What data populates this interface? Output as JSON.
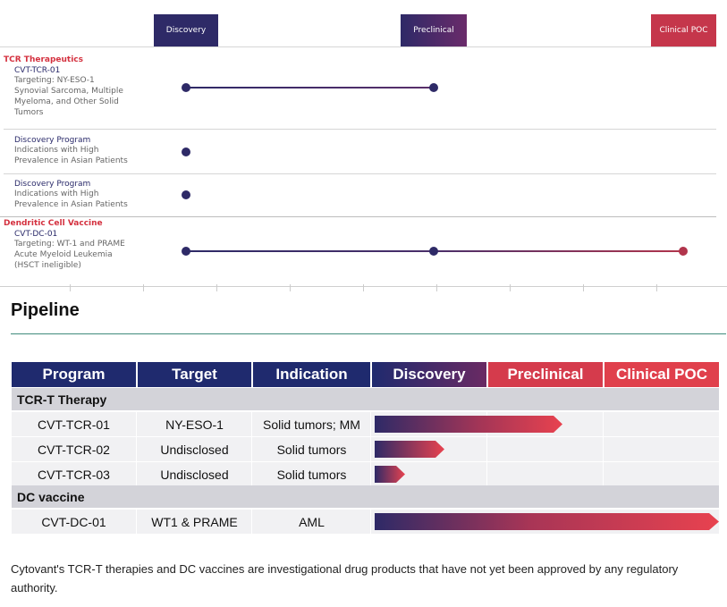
{
  "timeline": {
    "stages": [
      "Discovery",
      "Preclinical",
      "Clinical POC"
    ],
    "groups": [
      {
        "title": "TCR Therapeutics",
        "programs": [
          {
            "name": "CVT-TCR-01",
            "lines": [
              "Targeting: NY-ESO-1",
              "Synovial Sarcoma, Multiple",
              "Myeloma, and Other Solid",
              "Tumors"
            ]
          },
          {
            "name": "Discovery Program",
            "lines": [
              "Indications with High",
              "Prevalence in Asian Patients"
            ]
          },
          {
            "name": "Discovery Program",
            "lines": [
              "Indications with High",
              "Prevalence in Asian Patients"
            ]
          }
        ]
      },
      {
        "title": "Dendritic Cell Vaccine",
        "programs": [
          {
            "name": "CVT-DC-01",
            "lines": [
              "Targeting: WT-1 and PRAME",
              "Acute Myeloid Leukemia",
              "(HSCT ineligible)"
            ]
          }
        ]
      }
    ]
  },
  "pipeline": {
    "title": "Pipeline",
    "columns": [
      "Program",
      "Target",
      "Indication",
      "Discovery",
      "Preclinical",
      "Clinical POC"
    ],
    "sections": [
      {
        "name": "TCR-T Therapy",
        "rows": [
          {
            "program": "CVT-TCR-01",
            "target": "NY-ESO-1",
            "indication": "Solid tumors; MM",
            "progress": 0.53
          },
          {
            "program": "CVT-TCR-02",
            "target": "Undisclosed",
            "indication": "Solid tumors",
            "progress": 0.2
          },
          {
            "program": "CVT-TCR-03",
            "target": "Undisclosed",
            "indication": "Solid tumors",
            "progress": 0.09
          }
        ]
      },
      {
        "name": "DC vaccine",
        "rows": [
          {
            "program": "CVT-DC-01",
            "target": "WT1 & PRAME",
            "indication": "AML",
            "progress": 1.0
          }
        ]
      }
    ]
  },
  "footnote": "Cytovant's TCR-T therapies and DC vaccines are investigational drug products that have not yet been approved by any regulatory authority.",
  "colors": {
    "navy": "#2e2a67",
    "red": "#e8424f",
    "header_navy": "#1f2a6e",
    "header_red": "#d53b4c"
  }
}
